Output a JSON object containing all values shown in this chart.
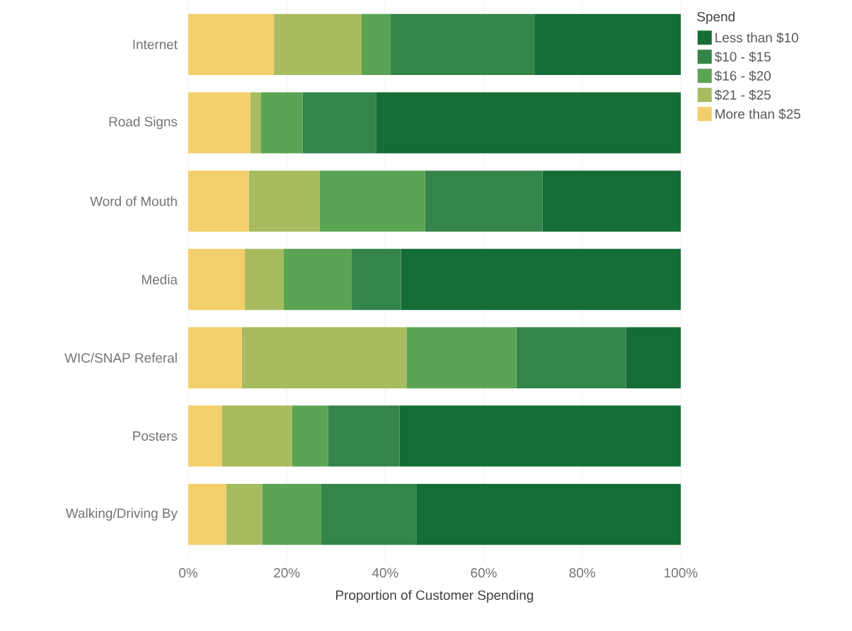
{
  "chart_data": {
    "type": "bar",
    "orientation": "horizontal",
    "stacked": true,
    "categories": [
      "Internet",
      "Road Signs",
      "Word of Mouth",
      "Media",
      "WIC/SNAP Referal",
      "Posters",
      "Walking/Driving By"
    ],
    "series": [
      {
        "name": "More than $25",
        "color": "#f2cf6b",
        "values": [
          17.4,
          12.6,
          12.3,
          11.5,
          10.9,
          6.8,
          7.7
        ]
      },
      {
        "name": "$21 - $25",
        "color": "#a7bc5f",
        "values": [
          17.8,
          2.1,
          14.4,
          7.9,
          33.4,
          14.3,
          7.3
        ]
      },
      {
        "name": "$16 - $20",
        "color": "#5aa454",
        "values": [
          5.9,
          8.5,
          21.4,
          13.8,
          22.3,
          7.3,
          12.0
        ]
      },
      {
        "name": "$10 - $15",
        "color": "#35844a",
        "values": [
          29.3,
          15.0,
          23.8,
          10.0,
          22.3,
          14.5,
          19.4
        ]
      },
      {
        "name": "Less than $10",
        "color": "#156d36",
        "values": [
          29.6,
          61.8,
          28.1,
          56.8,
          11.1,
          57.1,
          53.6
        ]
      }
    ],
    "xlim": [
      0,
      100
    ],
    "xticks": [
      {
        "value": 0,
        "label": "0%"
      },
      {
        "value": 20,
        "label": "20%"
      },
      {
        "value": 40,
        "label": "40%"
      },
      {
        "value": 60,
        "label": "60%"
      },
      {
        "value": 80,
        "label": "80%"
      },
      {
        "value": 100,
        "label": "100%"
      }
    ],
    "xlabel": "Proportion of Customer Spending",
    "legend_title": "Spend",
    "legend": "right",
    "grid": "x"
  }
}
